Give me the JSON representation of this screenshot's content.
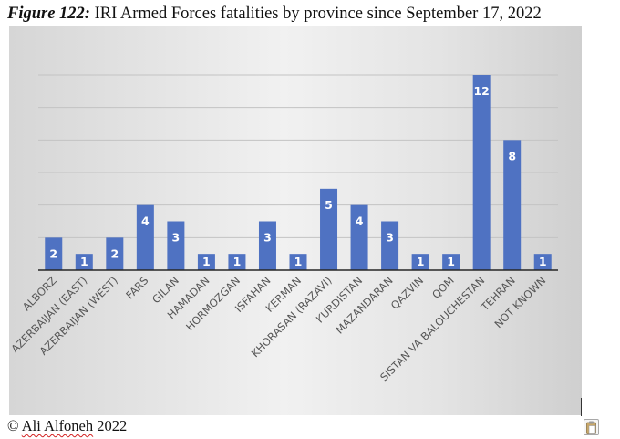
{
  "caption": {
    "figure_label": "Figure 122:",
    "title_text": "IRI Armed Forces fatalities by province since September 17, 2022"
  },
  "copyright": {
    "symbol": "©",
    "author": "Ali Alfoneh",
    "year": "2022"
  },
  "colors": {
    "bar": "#4f72c2",
    "bar_label": "#ffffff",
    "gridline": "#c3c3c3",
    "axis": "#262626",
    "tick_label": "#555555"
  },
  "icons": {
    "paste_options": "clipboard-icon"
  },
  "chart_data": {
    "type": "bar",
    "title": "IRI Armed Forces fatalities by province since September 17, 2022",
    "xlabel": "",
    "ylabel": "",
    "ylim": [
      0,
      12
    ],
    "gridline_step": 2,
    "grid": true,
    "legend": "none",
    "categories": [
      "ALBORZ",
      "AZERBAIJAN (EAST)",
      "AZERBAIJAN (WEST)",
      "FARS",
      "GILAN",
      "HAMADAN",
      "HORMOZGAN",
      "ISFAHAN",
      "KERMAN",
      "KHORASAN (RAZAVI)",
      "KURDISTAN",
      "MAZANDARAN",
      "QAZVIN",
      "QOM",
      "SISTAN VA BALOUCHESTAN",
      "TEHRAN",
      "NOT KNOWN"
    ],
    "values": [
      2,
      1,
      2,
      4,
      3,
      1,
      1,
      3,
      1,
      5,
      4,
      3,
      1,
      1,
      12,
      8,
      1
    ],
    "data_labels": [
      "2",
      "1",
      "2",
      "4",
      "3",
      "1",
      "1",
      "3",
      "1",
      "5",
      "4",
      "3",
      "1",
      "1",
      "12",
      "8",
      "1"
    ]
  }
}
